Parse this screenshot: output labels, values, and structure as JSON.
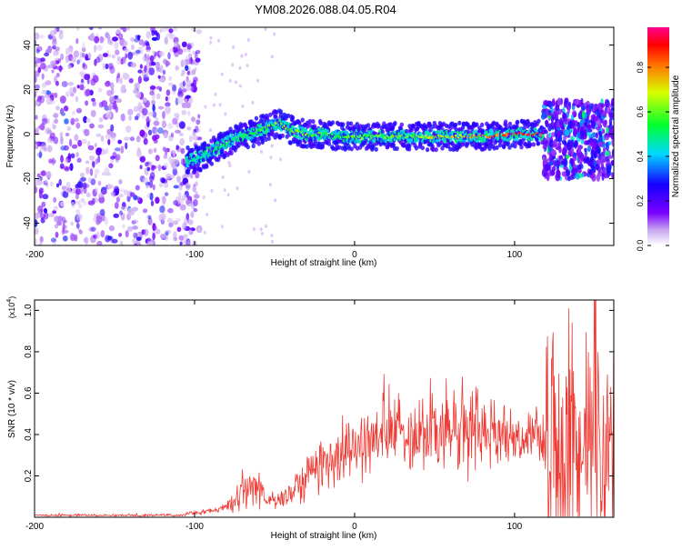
{
  "title": "YM08.2026.088.04.05.R04",
  "chart_data": [
    {
      "type": "heatmap",
      "xlabel": "Height of straight line (km)",
      "ylabel": "Frequency (Hz)",
      "xlim": [
        -200,
        162
      ],
      "ylim": [
        -50,
        48
      ],
      "x_ticks": [
        "-200",
        "-100",
        "0",
        "100"
      ],
      "y_ticks": [
        "-40",
        "-20",
        "0",
        "20",
        "40"
      ],
      "grid": false,
      "ridge": {
        "x": [
          -105,
          -95,
          -85,
          -75,
          -65,
          -55,
          -48,
          -40,
          -30,
          -20,
          -10,
          0,
          20,
          40,
          60,
          80,
          100,
          110,
          118
        ],
        "freq": [
          -12,
          -10,
          -6,
          -2,
          0,
          3,
          5,
          2,
          0,
          0,
          -1,
          -1,
          -1,
          -1,
          -1,
          -1,
          0,
          0,
          0
        ],
        "amplitude": [
          0.55,
          0.5,
          0.55,
          0.6,
          0.55,
          0.6,
          0.7,
          0.65,
          0.65,
          0.6,
          0.6,
          0.65,
          0.65,
          0.7,
          0.75,
          0.8,
          0.95,
          0.95,
          0.95
        ]
      },
      "noise_region": {
        "x_range": [
          -200,
          -105
        ],
        "amplitude": 0.2
      },
      "tail_region": {
        "x_range": [
          118,
          162
        ],
        "freq_spread": [
          -20,
          15
        ],
        "amplitude": 0.3
      },
      "colorbar": {
        "label": "Normalized spectral amplitude",
        "ticks": [
          "0.0",
          "0.2",
          "0.4",
          "0.6",
          "0.8"
        ],
        "range": [
          0,
          0.98
        ]
      }
    },
    {
      "type": "line",
      "xlabel": "Height of straight line (km)",
      "ylabel": "SNR (10 * v/v)",
      "multiplier": "(x10",
      "multiplier_exp": "4",
      "multiplier_close": ")",
      "xlim": [
        -200,
        162
      ],
      "ylim": [
        0,
        1.05
      ],
      "x_ticks": [
        "-200",
        "-100",
        "0",
        "100"
      ],
      "y_ticks": [
        "0.2",
        "0.4",
        "0.6",
        "0.8",
        "1.0"
      ],
      "color": "#f03a34",
      "series": [
        {
          "x": [
            -200,
            -150,
            -110,
            -100,
            -90,
            -80,
            -75,
            -70,
            -65,
            -60,
            -55,
            -50,
            -45,
            -40,
            -30,
            -20,
            -10,
            0,
            10,
            20,
            30,
            40,
            50,
            60,
            70,
            80,
            90,
            100,
            110,
            118,
            120,
            130,
            140,
            150,
            162
          ],
          "y": [
            0.01,
            0.01,
            0.01,
            0.02,
            0.03,
            0.05,
            0.08,
            0.12,
            0.16,
            0.14,
            0.08,
            0.07,
            0.1,
            0.12,
            0.2,
            0.27,
            0.3,
            0.33,
            0.37,
            0.4,
            0.41,
            0.42,
            0.42,
            0.41,
            0.42,
            0.42,
            0.4,
            0.4,
            0.39,
            0.38,
            0.3,
            0.32,
            0.3,
            0.3,
            0.3
          ],
          "spread": [
            0.005,
            0.005,
            0.005,
            0.01,
            0.01,
            0.02,
            0.05,
            0.1,
            0.1,
            0.08,
            0.04,
            0.04,
            0.06,
            0.08,
            0.1,
            0.12,
            0.14,
            0.14,
            0.14,
            0.15,
            0.16,
            0.18,
            0.2,
            0.2,
            0.22,
            0.18,
            0.12,
            0.1,
            0.1,
            0.12,
            0.5,
            0.6,
            0.55,
            0.5,
            0.5
          ]
        }
      ]
    }
  ]
}
